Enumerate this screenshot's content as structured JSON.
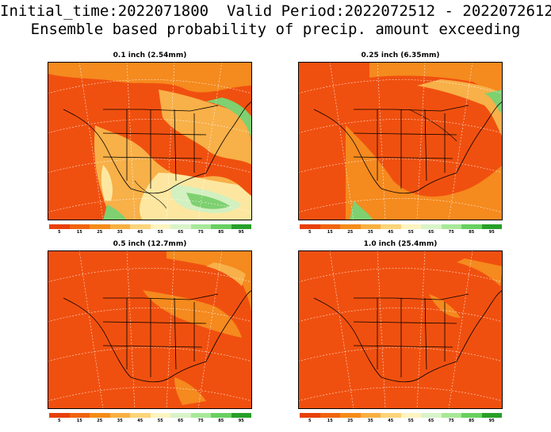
{
  "title": {
    "line1": "Initial_time:2022071800  Valid Period:2022072512 - 2022072612",
    "line2": "Ensemble based probability of precip. amount exceeding"
  },
  "panels": [
    {
      "title": "0.1 inch (2.54mm)"
    },
    {
      "title": "0.25 inch (6.35mm)"
    },
    {
      "title": "0.5 inch (12.7mm)"
    },
    {
      "title": "1.0 inch (25.4mm)"
    }
  ],
  "colorbar": {
    "labels": [
      "5",
      "15",
      "25",
      "35",
      "45",
      "55",
      "65",
      "75",
      "85",
      "95"
    ],
    "colors": [
      "#e8400a",
      "#f0640e",
      "#f58c18",
      "#f8b040",
      "#fcd47a",
      "#fef4c0",
      "#d8f4c8",
      "#a8e898",
      "#68d060",
      "#28a028"
    ]
  },
  "colors": {
    "base": "#f0500f",
    "orange": "#f58a1e",
    "light_orange": "#f8b048",
    "yellow": "#fde7a0",
    "pale_green": "#d2f0c0",
    "green": "#7ed070"
  }
}
